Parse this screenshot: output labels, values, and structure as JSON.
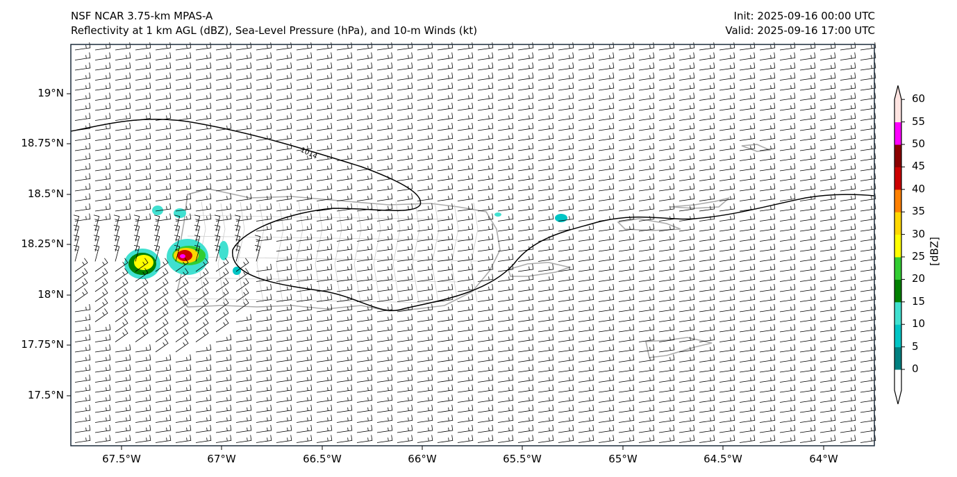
{
  "header": {
    "title": "NSF NCAR 3.75-km MPAS-A",
    "subtitle": "Reflectivity at 1 km AGL (dBZ), Sea-Level Pressure (hPa), and 10-m Winds (kt)",
    "init": "Init: 2025-09-16 00:00 UTC",
    "valid": "Valid: 2025-09-16 17:00 UTC"
  },
  "map": {
    "lat_labels": [
      "19°N",
      "18.75°N",
      "18.5°N",
      "18.25°N",
      "18°N",
      "17.75°N",
      "17.5°N"
    ],
    "lon_labels": [
      "67.5°W",
      "67°W",
      "66.5°W",
      "66°W",
      "65.5°W",
      "65°W",
      "64.5°W",
      "64°W"
    ],
    "isobar_label": "1014"
  },
  "colorbar": {
    "label": "[dBZ]",
    "ticks": [
      "0",
      "5",
      "10",
      "15",
      "20",
      "25",
      "30",
      "35",
      "40",
      "45",
      "50",
      "55",
      "60"
    ],
    "colors": [
      "#008080",
      "#00c5c5",
      "#40e0d0",
      "#008000",
      "#32cd32",
      "#ffff00",
      "#ffd700",
      "#ff8000",
      "#cc0000",
      "#8b0000",
      "#ff00ff",
      "#ffe4e1"
    ]
  }
}
